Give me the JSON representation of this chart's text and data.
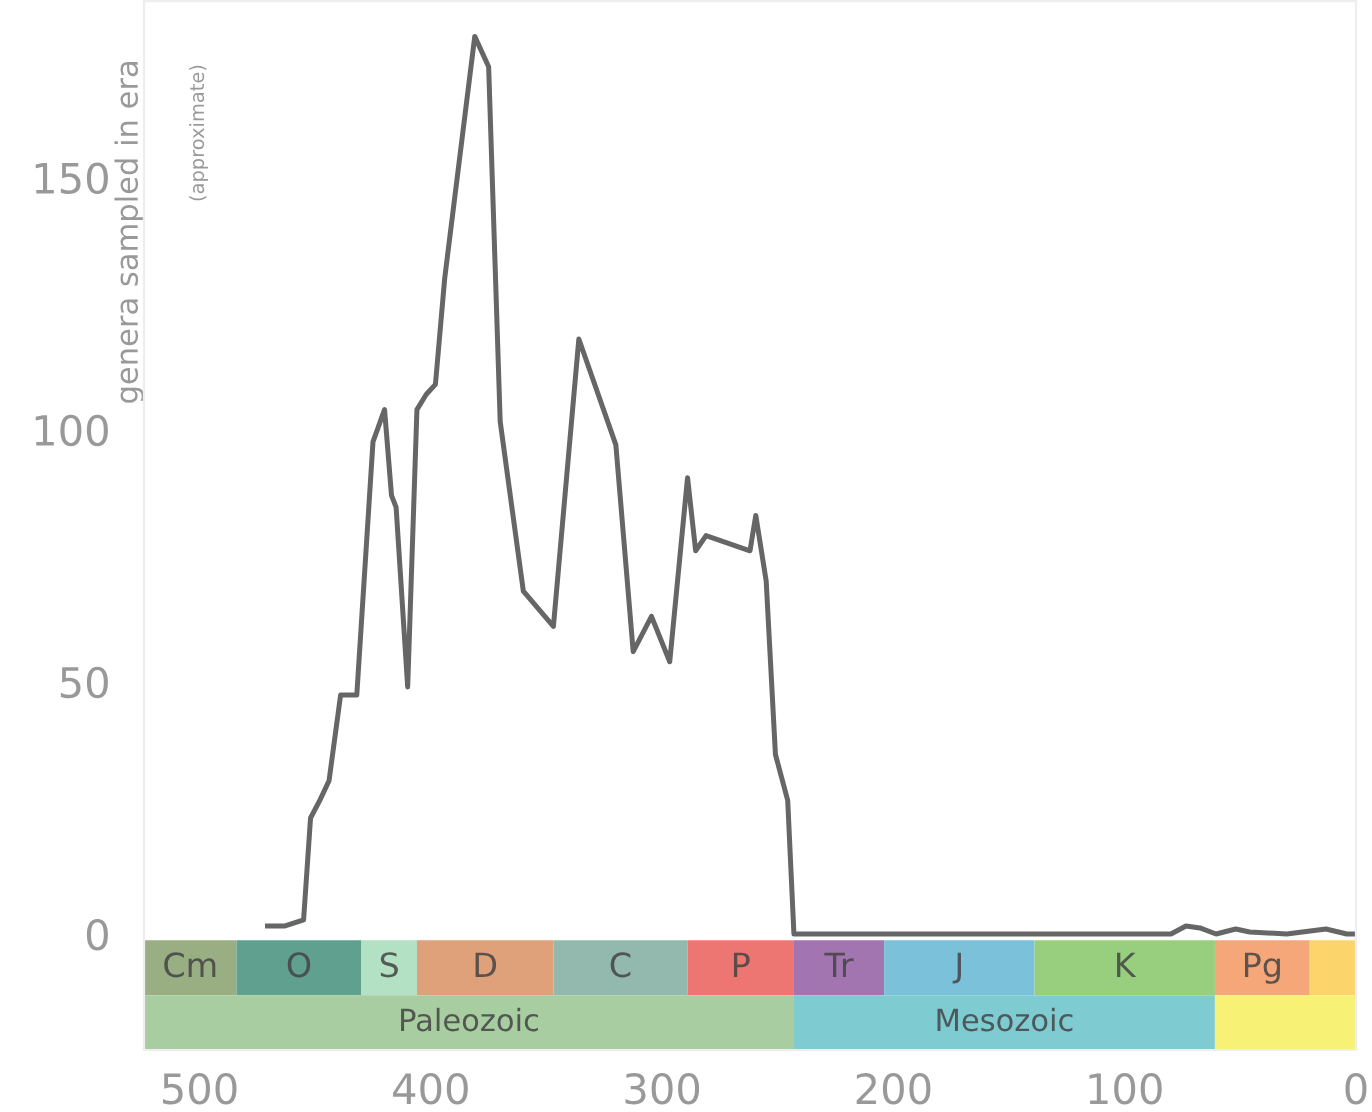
{
  "chart_data": {
    "type": "line",
    "ylabel": "genera sampled in era",
    "annotations": [
      "(approximate)"
    ],
    "x": [
      470.6,
      463,
      455,
      452,
      448,
      444,
      439,
      432,
      425,
      420,
      417,
      415,
      410,
      406,
      402,
      398,
      394,
      381,
      375,
      370,
      360,
      347,
      336,
      320,
      312.5,
      304.6,
      296.7,
      289,
      285.5,
      281,
      262,
      259.5,
      255,
      251,
      245.7,
      243,
      200,
      100,
      80,
      73.5,
      67.5,
      60.5,
      52,
      46,
      30,
      13,
      4,
      0
    ],
    "series": [
      {
        "color": "#666666",
        "values": [
          1.6,
          1.6,
          2.8,
          23,
          26.5,
          30.4,
          47.4,
          47.4,
          97.6,
          104,
          87,
          84.6,
          49,
          104,
          107,
          109,
          130,
          178,
          172,
          101.6,
          68,
          61,
          118,
          97,
          56,
          63,
          54,
          90.5,
          76,
          79,
          76,
          83,
          70,
          35.6,
          26.5,
          0,
          0,
          0,
          0,
          1.6,
          1.2,
          0,
          1,
          0.4,
          0,
          1,
          0,
          0
        ]
      }
    ],
    "xlim": [
      524,
      0
    ],
    "ylim": [
      -23,
      185
    ],
    "xticks": [
      500,
      400,
      300,
      200,
      100,
      0
    ],
    "yticks": [
      0,
      50,
      100,
      150
    ],
    "grid": false,
    "marker": "none",
    "line_style": "solid",
    "bands": [
      {
        "axis": "x",
        "from": 524,
        "to": 484,
        "label": "Cm",
        "color": "#9aae84"
      },
      {
        "axis": "x",
        "from": 484,
        "to": 430,
        "label": "O",
        "color": "#5fa08f"
      },
      {
        "axis": "x",
        "from": 430,
        "to": 406,
        "label": "S",
        "color": "#b3e1c4"
      },
      {
        "axis": "x",
        "from": 406,
        "to": 347,
        "label": "D",
        "color": "#dea17a"
      },
      {
        "axis": "x",
        "from": 347,
        "to": 289,
        "label": "C",
        "color": "#93b8ad"
      },
      {
        "axis": "x",
        "from": 289,
        "to": 243,
        "label": "P",
        "color": "#ee7672"
      },
      {
        "axis": "x",
        "from": 243,
        "to": 204,
        "label": "Tr",
        "color": "#a274b0"
      },
      {
        "axis": "x",
        "from": 204,
        "to": 139,
        "label": "J",
        "color": "#7ac1d9"
      },
      {
        "axis": "x",
        "from": 139,
        "to": 61,
        "label": "K",
        "color": "#97cf7f"
      },
      {
        "axis": "x",
        "from": 61,
        "to": 20,
        "label": "Pg",
        "color": "#f5a77a"
      },
      {
        "axis": "x",
        "from": 20,
        "to": 0,
        "label": null,
        "color": "#fbd56b"
      },
      {
        "axis": "x",
        "from": 524,
        "to": 243,
        "label": "Paleozoic",
        "color": "#a7cda0"
      },
      {
        "axis": "x",
        "from": 243,
        "to": 61,
        "label": "Mesozoic",
        "color": "#7fcbd2"
      },
      {
        "axis": "x",
        "from": 61,
        "to": 0,
        "label": null,
        "color": "#f7f176"
      }
    ]
  }
}
